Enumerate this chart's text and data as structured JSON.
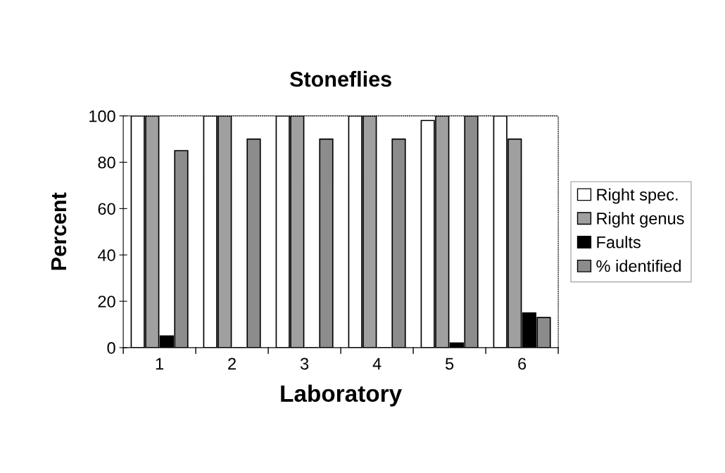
{
  "chart_data": {
    "type": "bar",
    "title": "Stoneflies",
    "xlabel": "Laboratory",
    "ylabel": "Percent",
    "categories": [
      "1",
      "2",
      "3",
      "4",
      "5",
      "6"
    ],
    "series": [
      {
        "name": "Right spec.",
        "color": "#ffffff",
        "values": [
          100,
          100,
          100,
          100,
          98,
          100
        ]
      },
      {
        "name": "Right genus",
        "color": "#a0a0a0",
        "values": [
          100,
          100,
          100,
          100,
          100,
          90
        ]
      },
      {
        "name": "Faults",
        "color": "#000000",
        "values": [
          5,
          0,
          0,
          0,
          2,
          15
        ]
      },
      {
        "name": "% identified",
        "color": "#8c8c8c",
        "values": [
          85,
          90,
          90,
          90,
          100,
          13
        ]
      }
    ],
    "ylim": [
      0,
      100
    ],
    "yticks": [
      0,
      20,
      40,
      60,
      80,
      100
    ],
    "grid": false,
    "legend": "right"
  }
}
